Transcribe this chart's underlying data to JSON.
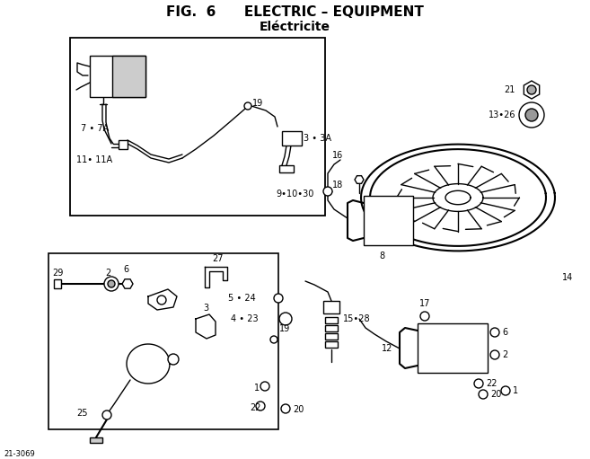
{
  "title_line1": "FIG.  6      ELECTRIC – EQUIPMENT",
  "title_line2": "Eléctricite",
  "bg_color": "#ffffff",
  "figure_size": [
    6.57,
    5.11
  ],
  "dpi": 100,
  "bottom_left_text": "21-3069",
  "lw": 1.0,
  "lw_thick": 1.5,
  "labels": {
    "7_7A": "7 • 7A",
    "11_11A": "11• 11A",
    "19_top": "19",
    "3_3A": "3 • 3A",
    "21": "21",
    "13_26": "13•26",
    "9_10_30": "9•10•30",
    "18": "18",
    "16": "16",
    "8": "8",
    "14": "14",
    "5_24": "5 • 24",
    "4_23": "4 • 23",
    "15_28": "15•28",
    "17": "17",
    "6_right": "6",
    "2_right": "2",
    "1_right": "1",
    "22_right": "22",
    "20_right": "20",
    "12": "12",
    "19_mid": "19",
    "1_bot": "1",
    "22_bot": "22",
    "20_bot": "20",
    "29": "29",
    "2_left": "2",
    "6_left": "6",
    "27": "27",
    "3_left": "3",
    "25": "25"
  }
}
